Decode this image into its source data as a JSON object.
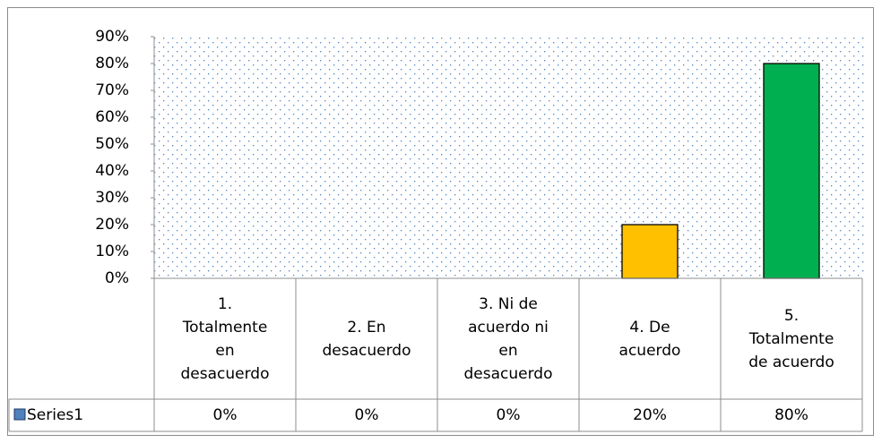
{
  "chart_data": {
    "type": "bar",
    "categories": [
      "1. Totalmente en desacuerdo",
      "2. En desacuerdo",
      "3. Ni de acuerdo ni en desacuerdo",
      "4. De acuerdo",
      "5. Totalmente de acuerdo"
    ],
    "series": [
      {
        "name": "Series1",
        "color": "#4f81bd",
        "point_colors": [
          "#4f81bd",
          "#4f81bd",
          "#4f81bd",
          "#ffc000",
          "#00b050"
        ],
        "values": [
          0,
          0,
          0,
          20,
          80
        ],
        "value_labels": [
          "0%",
          "0%",
          "0%",
          "20%",
          "80%"
        ]
      }
    ],
    "ylim": [
      0,
      90
    ],
    "yticks": [
      {
        "value": 0,
        "label": "0%"
      },
      {
        "value": 10,
        "label": "10%"
      },
      {
        "value": 20,
        "label": "20%"
      },
      {
        "value": 30,
        "label": "30%"
      },
      {
        "value": 40,
        "label": "40%"
      },
      {
        "value": 50,
        "label": "50%"
      },
      {
        "value": 60,
        "label": "60%"
      },
      {
        "value": 70,
        "label": "70%"
      },
      {
        "value": 80,
        "label": "80%"
      },
      {
        "value": 90,
        "label": "90%"
      }
    ],
    "grid": false,
    "data_table": true
  }
}
